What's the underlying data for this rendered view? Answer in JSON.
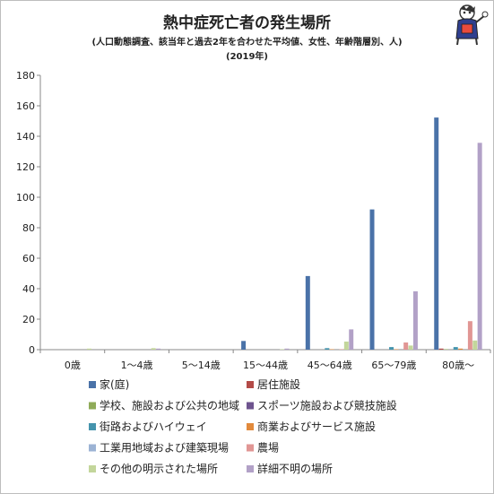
{
  "chart_data": {
    "type": "bar",
    "title": "熱中症死亡者の発生場所",
    "subtitle": "(人口動態調査、該当年と過去2年を合わせた平均値、女性、年齢階層別、人)",
    "subtitle2": "(2019年)",
    "categories": [
      "0歳",
      "1～4歳",
      "5～14歳",
      "15～44歳",
      "45～64歳",
      "65～79歳",
      "80歳～"
    ],
    "ylim": [
      0,
      180
    ],
    "yticks": [
      0,
      20,
      40,
      60,
      80,
      100,
      120,
      140,
      160,
      180
    ],
    "grid": false,
    "legend_position": "bottom",
    "series": [
      {
        "name": "家(庭)",
        "color": "#4a72a8",
        "values": [
          0,
          0,
          0,
          5.7,
          48.3,
          92.0,
          152.3
        ]
      },
      {
        "name": "居住施設",
        "color": "#b34b48",
        "values": [
          0,
          0,
          0,
          0,
          0,
          0,
          0.7
        ]
      },
      {
        "name": "学校、施設および公共の地域",
        "color": "#8fab58",
        "values": [
          0,
          0,
          0,
          0,
          0,
          0,
          0.3
        ]
      },
      {
        "name": "スポーツ施設および競技施設",
        "color": "#6e548f",
        "values": [
          0,
          0,
          0,
          0,
          0,
          0,
          0
        ]
      },
      {
        "name": "街路およびハイウェイ",
        "color": "#4594ad",
        "values": [
          0,
          0,
          0,
          0,
          1.0,
          1.7,
          1.7
        ]
      },
      {
        "name": "商業およびサービス施設",
        "color": "#e28a3c",
        "values": [
          0,
          0,
          0,
          0,
          0.3,
          0.3,
          0.7
        ]
      },
      {
        "name": "工業用地域および建築現場",
        "color": "#9cb3d4",
        "values": [
          0,
          0,
          0,
          0,
          0,
          0,
          0
        ]
      },
      {
        "name": "農場",
        "color": "#e19694",
        "values": [
          0,
          0,
          0,
          0,
          0.3,
          4.7,
          18.7
        ]
      },
      {
        "name": "その他の明示された場所",
        "color": "#c3d69b",
        "values": [
          0.7,
          1.0,
          0,
          0.3,
          5.3,
          2.7,
          6.0
        ]
      },
      {
        "name": "詳細不明の場所",
        "color": "#b2a1c7",
        "values": [
          0,
          0.7,
          0,
          0.7,
          13.3,
          38.3,
          135.7
        ]
      }
    ]
  }
}
